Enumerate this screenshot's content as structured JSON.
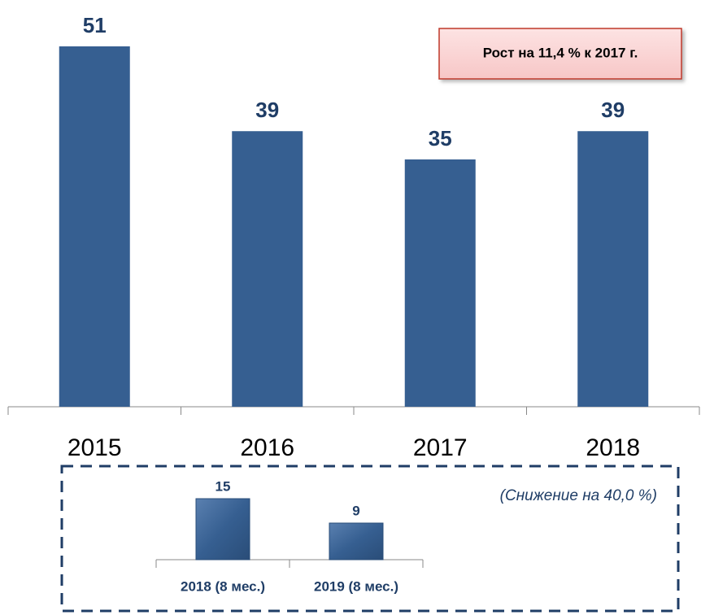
{
  "chart_data": [
    {
      "type": "bar",
      "categories": [
        "2015",
        "2016",
        "2017",
        "2018"
      ],
      "values": [
        51,
        39,
        35,
        39
      ],
      "color": "#365f91",
      "ylim": [
        0,
        51
      ],
      "annotation": "Рост на  11,4 % к 2017 г."
    },
    {
      "type": "bar",
      "categories": [
        "2018 (8 мес.)",
        "2019 (8 мес.)"
      ],
      "values": [
        15,
        9
      ],
      "color": "#365f91",
      "ylim": [
        0,
        15
      ],
      "annotation": "(Снижение на 40,0 %)"
    }
  ]
}
